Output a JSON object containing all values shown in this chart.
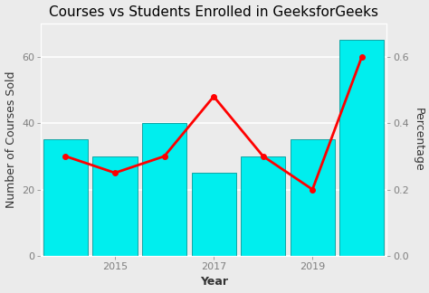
{
  "years": [
    2014,
    2015,
    2016,
    2017,
    2018,
    2019,
    2020
  ],
  "bar_values": [
    35,
    30,
    40,
    25,
    30,
    35,
    65
  ],
  "line_values": [
    0.3,
    0.25,
    0.3,
    0.48,
    0.3,
    0.2,
    0.6
  ],
  "bar_color": "#00EEEE",
  "bar_edge_color": "#009999",
  "line_color": "red",
  "line_width": 2.0,
  "marker": "o",
  "marker_size": 4,
  "title": "Courses vs Students Enrolled in GeeksforGeeks",
  "xlabel": "Year",
  "ylabel_left": "Number of Courses Sold",
  "ylabel_right": "Percentage",
  "bg_color": "#EBEBEB",
  "plot_bg_color": "#EBEBEB",
  "panel_border_color": "#FFFFFF",
  "grid_color": "white",
  "ylim_left": [
    0,
    70
  ],
  "ylim_right": [
    0,
    0.7
  ],
  "yticks_left": [
    0,
    20,
    40,
    60
  ],
  "yticks_right": [
    0.0,
    0.2,
    0.4,
    0.6
  ],
  "xticks": [
    2015,
    2017,
    2019
  ],
  "title_fontsize": 11,
  "label_fontsize": 9,
  "tick_fontsize": 8,
  "tick_color": "#7F7F7F",
  "axis_label_color": "#333333"
}
